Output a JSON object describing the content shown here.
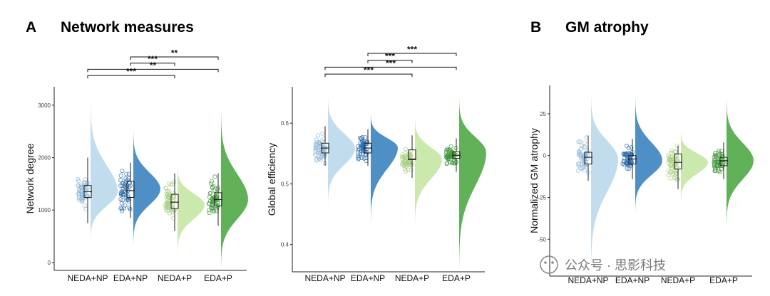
{
  "panels": {
    "a": {
      "letter": "A",
      "title": "Network measures"
    },
    "b": {
      "letter": "B",
      "title": "GM atrophy"
    }
  },
  "colors": {
    "group1": "#bcd9ec",
    "group2": "#3f86c1",
    "group3": "#c8e7a6",
    "group4": "#52aa4a",
    "point_g1": "#8fb8d6",
    "point_g2": "#2f6fae",
    "point_g3": "#a7cf83",
    "point_g4": "#3f953a"
  },
  "watermark": "公众号 · 思影科技",
  "chart_data": [
    {
      "id": "degree",
      "type": "raincloud",
      "title": "",
      "ylabel": "Network degree",
      "xlabel": "",
      "ylim": [
        -150,
        3350
      ],
      "yticks": [
        0,
        1000,
        2000,
        3000
      ],
      "categories": [
        "NEDA+NP",
        "EDA+NP",
        "NEDA+P",
        "EDA+P"
      ],
      "series": [
        {
          "name": "NEDA+NP",
          "median": 1350,
          "q1": 1240,
          "q3": 1470,
          "whisker_low": 750,
          "whisker_high": 2000,
          "dist_min": 400,
          "dist_max": 3100,
          "dist_mode": 1350
        },
        {
          "name": "EDA+NP",
          "median": 1370,
          "q1": 1240,
          "q3": 1550,
          "whisker_low": 850,
          "whisker_high": 1900,
          "dist_min": 350,
          "dist_max": 2500,
          "dist_mode": 1400
        },
        {
          "name": "NEDA+P",
          "median": 1150,
          "q1": 1030,
          "q3": 1300,
          "whisker_low": 600,
          "whisker_high": 1700,
          "dist_min": 150,
          "dist_max": 1850,
          "dist_mode": 1100
        },
        {
          "name": "EDA+P",
          "median": 1200,
          "q1": 1080,
          "q3": 1330,
          "whisker_low": 700,
          "whisker_high": 1700,
          "dist_min": -100,
          "dist_max": 2900,
          "dist_mode": 1200
        }
      ],
      "significance": [
        {
          "from": "EDA+NP",
          "to": "EDA+P",
          "label": "**",
          "level": 1
        },
        {
          "from": "EDA+NP",
          "to": "NEDA+P",
          "label": "***",
          "level": 2
        },
        {
          "from": "NEDA+NP",
          "to": "EDA+P",
          "label": "**",
          "level": 3
        },
        {
          "from": "NEDA+NP",
          "to": "NEDA+P",
          "label": "***",
          "level": 4
        }
      ]
    },
    {
      "id": "efficiency",
      "type": "raincloud",
      "title": "",
      "ylabel": "Global efficiency",
      "xlabel": "",
      "ylim": [
        0.355,
        0.66
      ],
      "yticks": [
        0.4,
        0.5,
        0.6
      ],
      "categories": [
        "NEDA+NP",
        "EDA+NP",
        "NEDA+P",
        "EDA+P"
      ],
      "series": [
        {
          "name": "NEDA+NP",
          "median": 0.559,
          "q1": 0.551,
          "q3": 0.567,
          "whisker_low": 0.53,
          "whisker_high": 0.595,
          "dist_min": 0.465,
          "dist_max": 0.645,
          "dist_mode": 0.558
        },
        {
          "name": "EDA+NP",
          "median": 0.559,
          "q1": 0.551,
          "q3": 0.567,
          "whisker_low": 0.53,
          "whisker_high": 0.59,
          "dist_min": 0.435,
          "dist_max": 0.615,
          "dist_mode": 0.56
        },
        {
          "name": "NEDA+P",
          "median": 0.541,
          "q1": 0.54,
          "q3": 0.556,
          "whisker_low": 0.51,
          "whisker_high": 0.58,
          "dist_min": 0.43,
          "dist_max": 0.61,
          "dist_mode": 0.54
        },
        {
          "name": "EDA+P",
          "median": 0.547,
          "q1": 0.542,
          "q3": 0.553,
          "whisker_low": 0.52,
          "whisker_high": 0.575,
          "dist_min": 0.36,
          "dist_max": 0.64,
          "dist_mode": 0.552
        }
      ],
      "significance": [
        {
          "from": "EDA+NP",
          "to": "EDA+P",
          "label": "***",
          "level": 1
        },
        {
          "from": "EDA+NP",
          "to": "NEDA+P",
          "label": "***",
          "level": 2
        },
        {
          "from": "NEDA+NP",
          "to": "EDA+P",
          "label": "***",
          "level": 3
        },
        {
          "from": "NEDA+NP",
          "to": "NEDA+P",
          "label": "***",
          "level": 4
        }
      ]
    },
    {
      "id": "atrophy",
      "type": "raincloud",
      "title": "",
      "ylabel": "Normalized GM atrophy",
      "xlabel": "",
      "ylim": [
        -72,
        42
      ],
      "yticks": [
        -50,
        -25,
        0,
        25
      ],
      "categories": [
        "NEDA+NP",
        "EDA+NP",
        "NEDA+P",
        "EDA+P"
      ],
      "series": [
        {
          "name": "NEDA+NP",
          "median": -1,
          "q1": -5,
          "q3": 2,
          "whisker_low": -15,
          "whisker_high": 12,
          "dist_min": -70,
          "dist_max": 36,
          "dist_mode": -2
        },
        {
          "name": "EDA+NP",
          "median": -2,
          "q1": -5,
          "q3": 0,
          "whisker_low": -14,
          "whisker_high": 10,
          "dist_min": -33,
          "dist_max": 35,
          "dist_mode": -3
        },
        {
          "name": "NEDA+P",
          "median": -4,
          "q1": -8,
          "q3": 1,
          "whisker_low": -20,
          "whisker_high": 6,
          "dist_min": -28,
          "dist_max": 15,
          "dist_mode": -4
        },
        {
          "name": "EDA+P",
          "median": -3,
          "q1": -6,
          "q3": -1,
          "whisker_low": -14,
          "whisker_high": 8,
          "dist_min": -42,
          "dist_max": 34,
          "dist_mode": -3
        }
      ],
      "significance": []
    }
  ]
}
